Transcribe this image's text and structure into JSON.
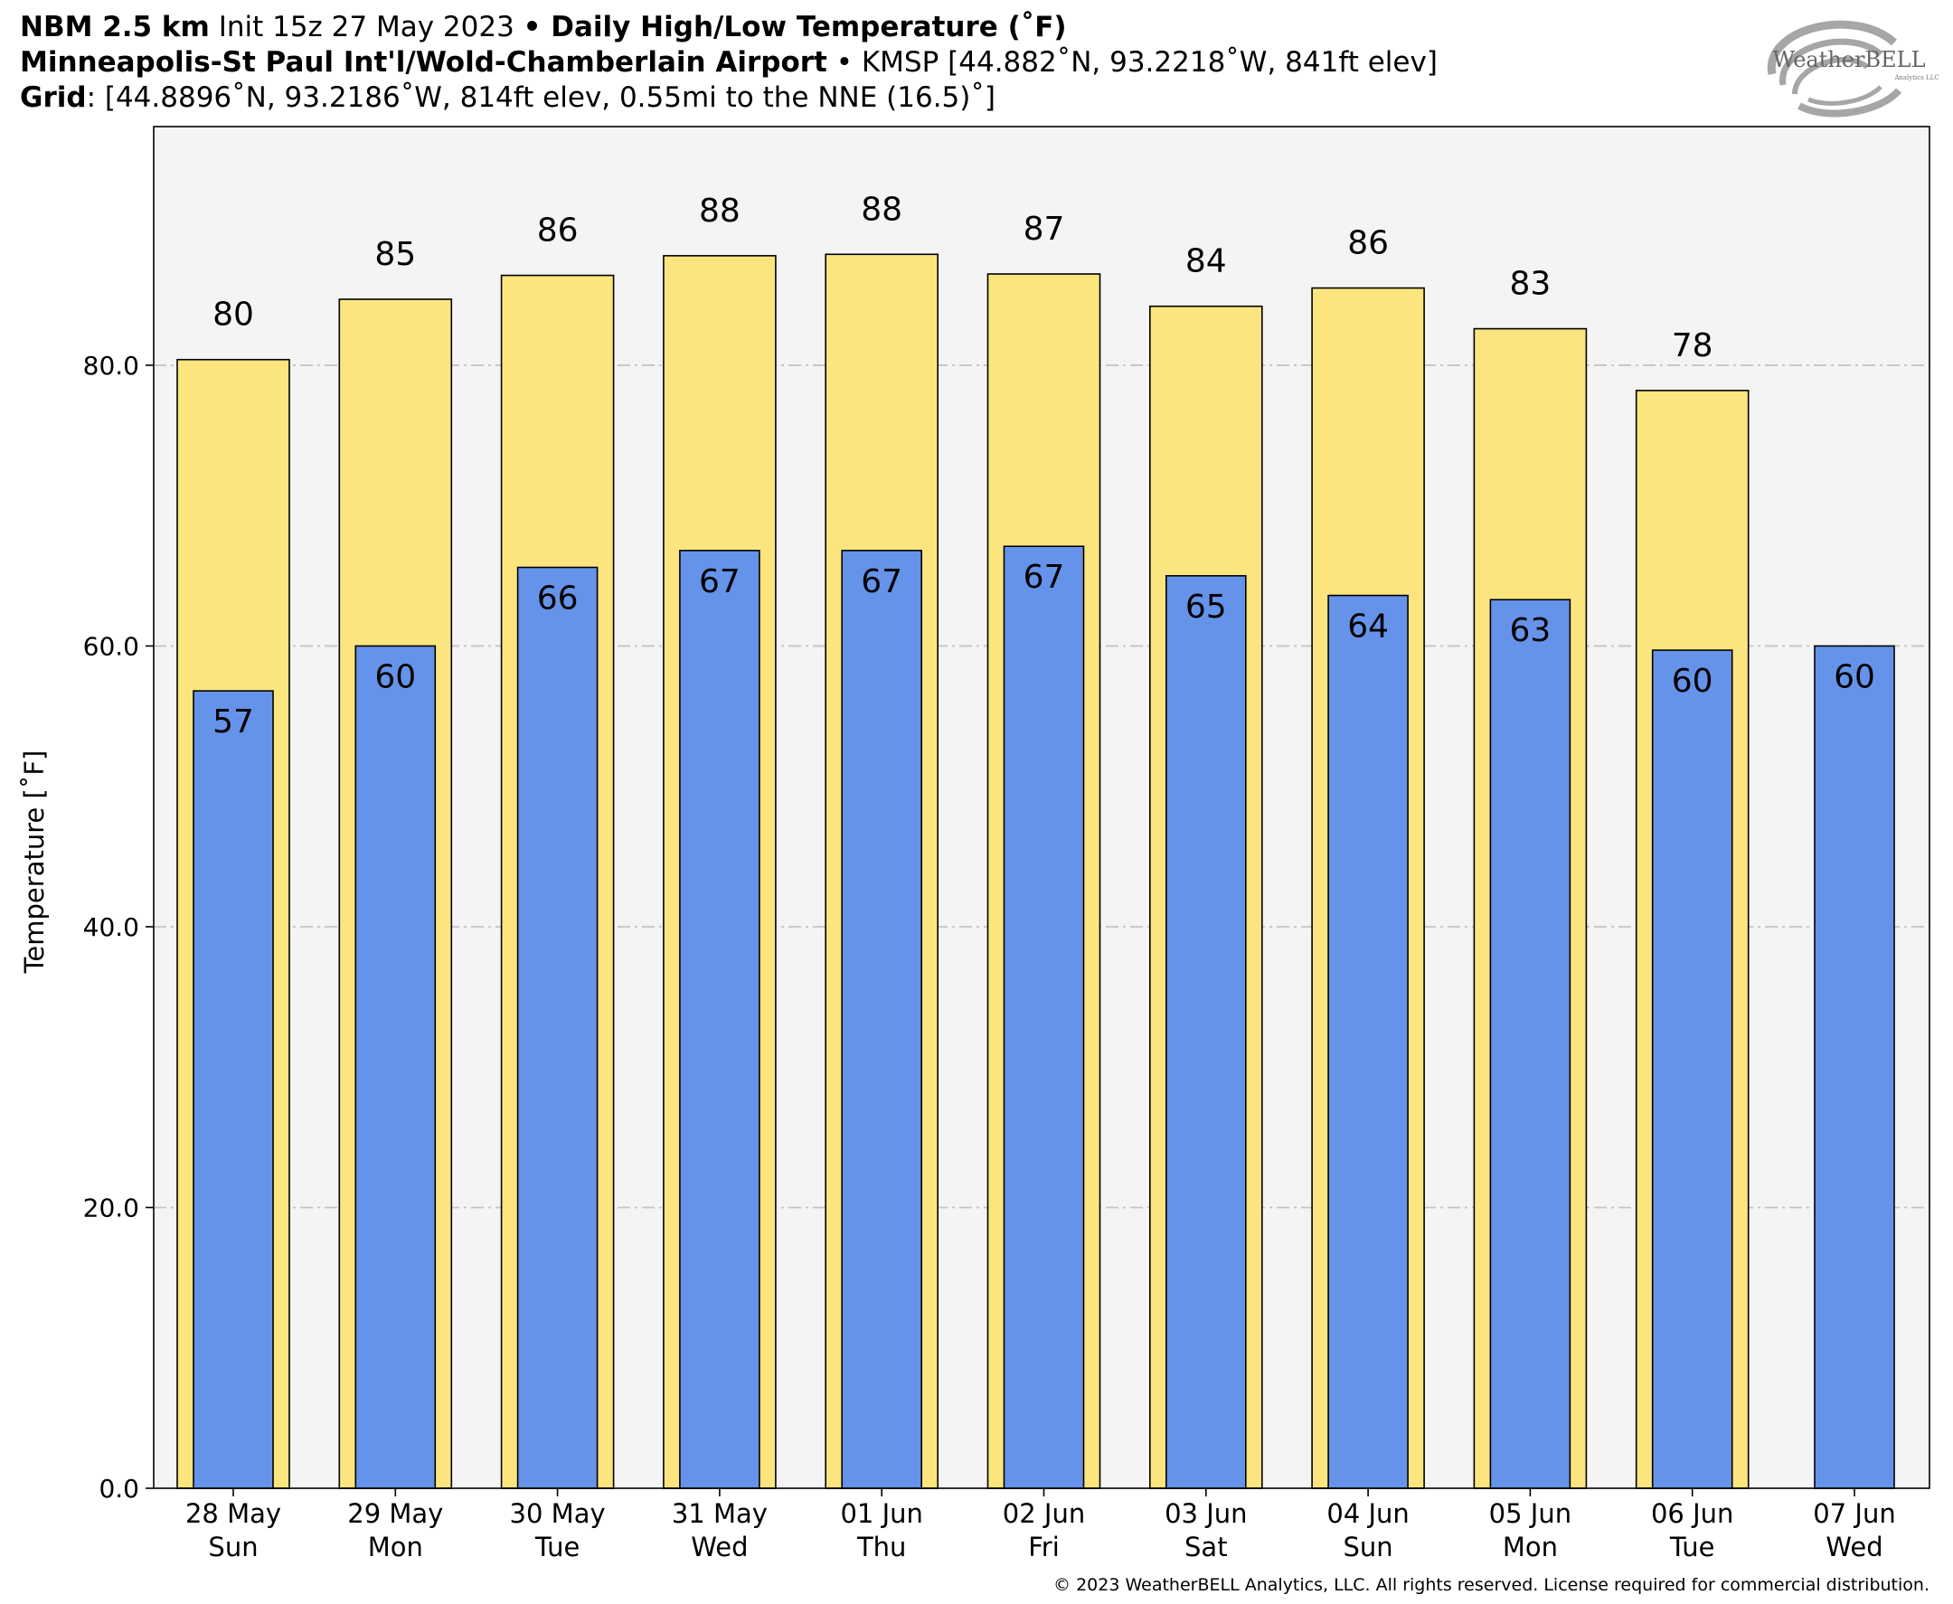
{
  "header": {
    "model": "NBM 2.5 km",
    "init": " Init 15z 27 May 2023 ",
    "sep1": "• ",
    "title": "Daily High/Low Temperature (˚F)",
    "station_name": "Minneapolis-St Paul Int'l/Wold-Chamberlain Airport",
    "station_info": " • KMSP [44.882˚N, 93.2218˚W, 841ft elev]",
    "grid_label": "Grid",
    "grid_info": ": [44.8896˚N, 93.2186˚W, 814ft elev, 0.55mi to the NNE (16.5)˚]"
  },
  "logo": {
    "text": "WeatherBELL",
    "subtext": "Analytics LLC"
  },
  "chart_data": {
    "type": "bar",
    "ylabel": "Temperature [˚F]",
    "xlabel": "",
    "ylim": [
      0,
      97
    ],
    "yticks": [
      "0.0",
      "20.0",
      "40.0",
      "60.0",
      "80.0"
    ],
    "ytick_values": [
      0,
      20,
      40,
      60,
      80
    ],
    "grid": true,
    "categories": [
      [
        "28 May",
        "Sun"
      ],
      [
        "29 May",
        "Mon"
      ],
      [
        "30 May",
        "Tue"
      ],
      [
        "31 May",
        "Wed"
      ],
      [
        "01 Jun",
        "Thu"
      ],
      [
        "02 Jun",
        "Fri"
      ],
      [
        "03 Jun",
        "Sat"
      ],
      [
        "04 Jun",
        "Sun"
      ],
      [
        "05 Jun",
        "Mon"
      ],
      [
        "06 Jun",
        "Tue"
      ],
      [
        "07 Jun",
        "Wed"
      ]
    ],
    "series": [
      {
        "values": [
          80.4,
          84.7,
          86.4,
          87.8,
          87.9,
          86.5,
          84.2,
          85.5,
          82.6,
          78.2,
          null
        ],
        "labels": [
          "80",
          "85",
          "86",
          "88",
          "88",
          "87",
          "84",
          "86",
          "83",
          "78",
          ""
        ],
        "color": "#fce57f"
      },
      {
        "values": [
          56.8,
          60.0,
          65.6,
          66.8,
          66.8,
          67.1,
          65.0,
          63.6,
          63.3,
          59.7,
          60.0
        ],
        "labels": [
          "57",
          "60",
          "66",
          "67",
          "67",
          "67",
          "65",
          "64",
          "63",
          "60",
          "60"
        ],
        "color": "#6693ea"
      }
    ]
  },
  "copyright": "© 2023 WeatherBELL Analytics, LLC. All rights reserved. License required for commercial distribution."
}
